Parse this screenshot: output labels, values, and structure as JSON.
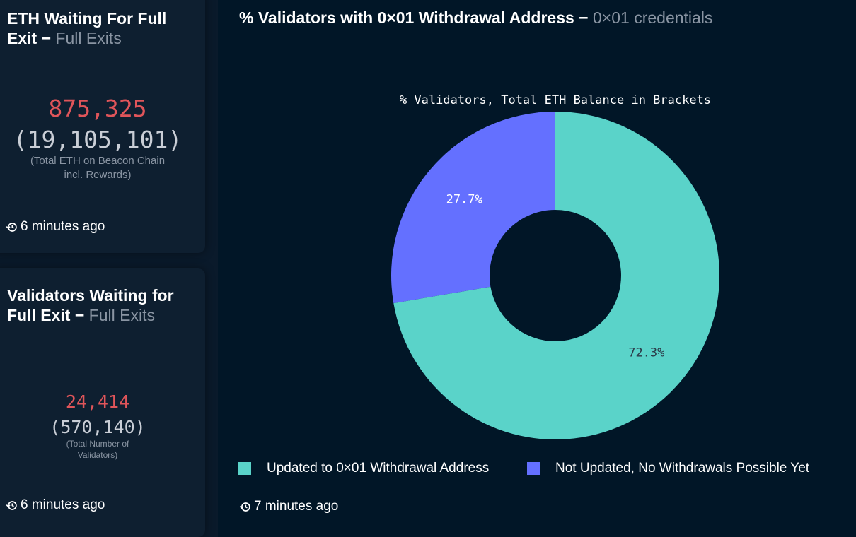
{
  "eth_card": {
    "title": "ETH Waiting For Full Exit",
    "separator": "−",
    "subtitle": "Full Exits",
    "value": "875,325",
    "total": "(19,105,101)",
    "note": "(Total ETH on Beacon Chain incl. Rewards)",
    "updated": "6 minutes ago",
    "icon": "history-icon"
  },
  "validator_card": {
    "title": "Validators Waiting for Full Exit",
    "separator": "−",
    "subtitle": "Full Exits",
    "value": "24,414",
    "total": "(570,140)",
    "note": "(Total Number of Validators)",
    "updated": "6 minutes ago",
    "icon": "history-icon"
  },
  "chart_card": {
    "title": "% Validators with 0×01 Withdrawal Address",
    "separator": "−",
    "subtitle": "0×01 credentials",
    "updated": "7 minutes ago",
    "icon": "history-icon"
  },
  "colors": {
    "updated": "#5ad3c9",
    "not_updated": "#6470ff",
    "value_red": "#e0555a",
    "background": "#011627"
  },
  "chart_data": {
    "type": "pie",
    "title": "% Validators, Total ETH Balance in Brackets",
    "categories": [
      "Updated to 0×01 Withdrawal Address",
      "Not Updated, No Withdrawals Possible Yet"
    ],
    "values": [
      72.3,
      27.7
    ],
    "labels": [
      "72.3%",
      "27.7%"
    ],
    "donut": true,
    "legend_position": "bottom"
  }
}
